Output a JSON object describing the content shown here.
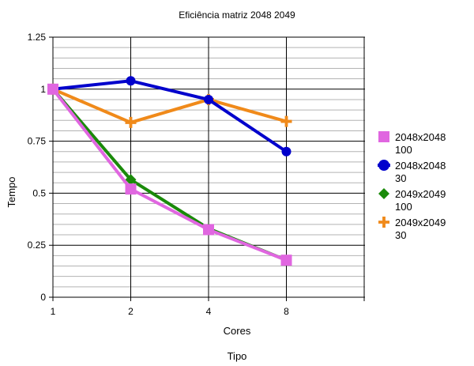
{
  "chart_data": {
    "type": "line",
    "title": "Eficiência matriz 2048 2049",
    "xlabel": "Cores",
    "footer_label": "Tipo",
    "ylabel": "Tempo",
    "categories": [
      "1",
      "2",
      "4",
      "8"
    ],
    "ylim": [
      0,
      1.25
    ],
    "y_ticks": [
      "0",
      "0.25",
      "0.5",
      "0.75",
      "1",
      "1.25"
    ],
    "grid": true,
    "legend_position": "right",
    "series": [
      {
        "name": "2048x2048 100",
        "name_lines": [
          "2048x2048",
          "100"
        ],
        "color": "#e066e0",
        "marker": "square",
        "values": [
          1.0,
          0.52,
          0.325,
          0.178
        ]
      },
      {
        "name": "2048x2048 30",
        "name_lines": [
          "2048x2048",
          "30"
        ],
        "color": "#0000cc",
        "marker": "circle",
        "values": [
          1.0,
          1.04,
          0.95,
          0.7
        ]
      },
      {
        "name": "2049x2049 100",
        "name_lines": [
          "2049x2049",
          "100"
        ],
        "color": "#1a8a0a",
        "marker": "diamond",
        "values": [
          1.0,
          0.565,
          0.33,
          0.178
        ]
      },
      {
        "name": "2049x2049 30",
        "name_lines": [
          "2049x2049",
          "30"
        ],
        "color": "#f08a1a",
        "marker": "plus",
        "values": [
          1.0,
          0.84,
          0.95,
          0.845
        ]
      }
    ]
  }
}
